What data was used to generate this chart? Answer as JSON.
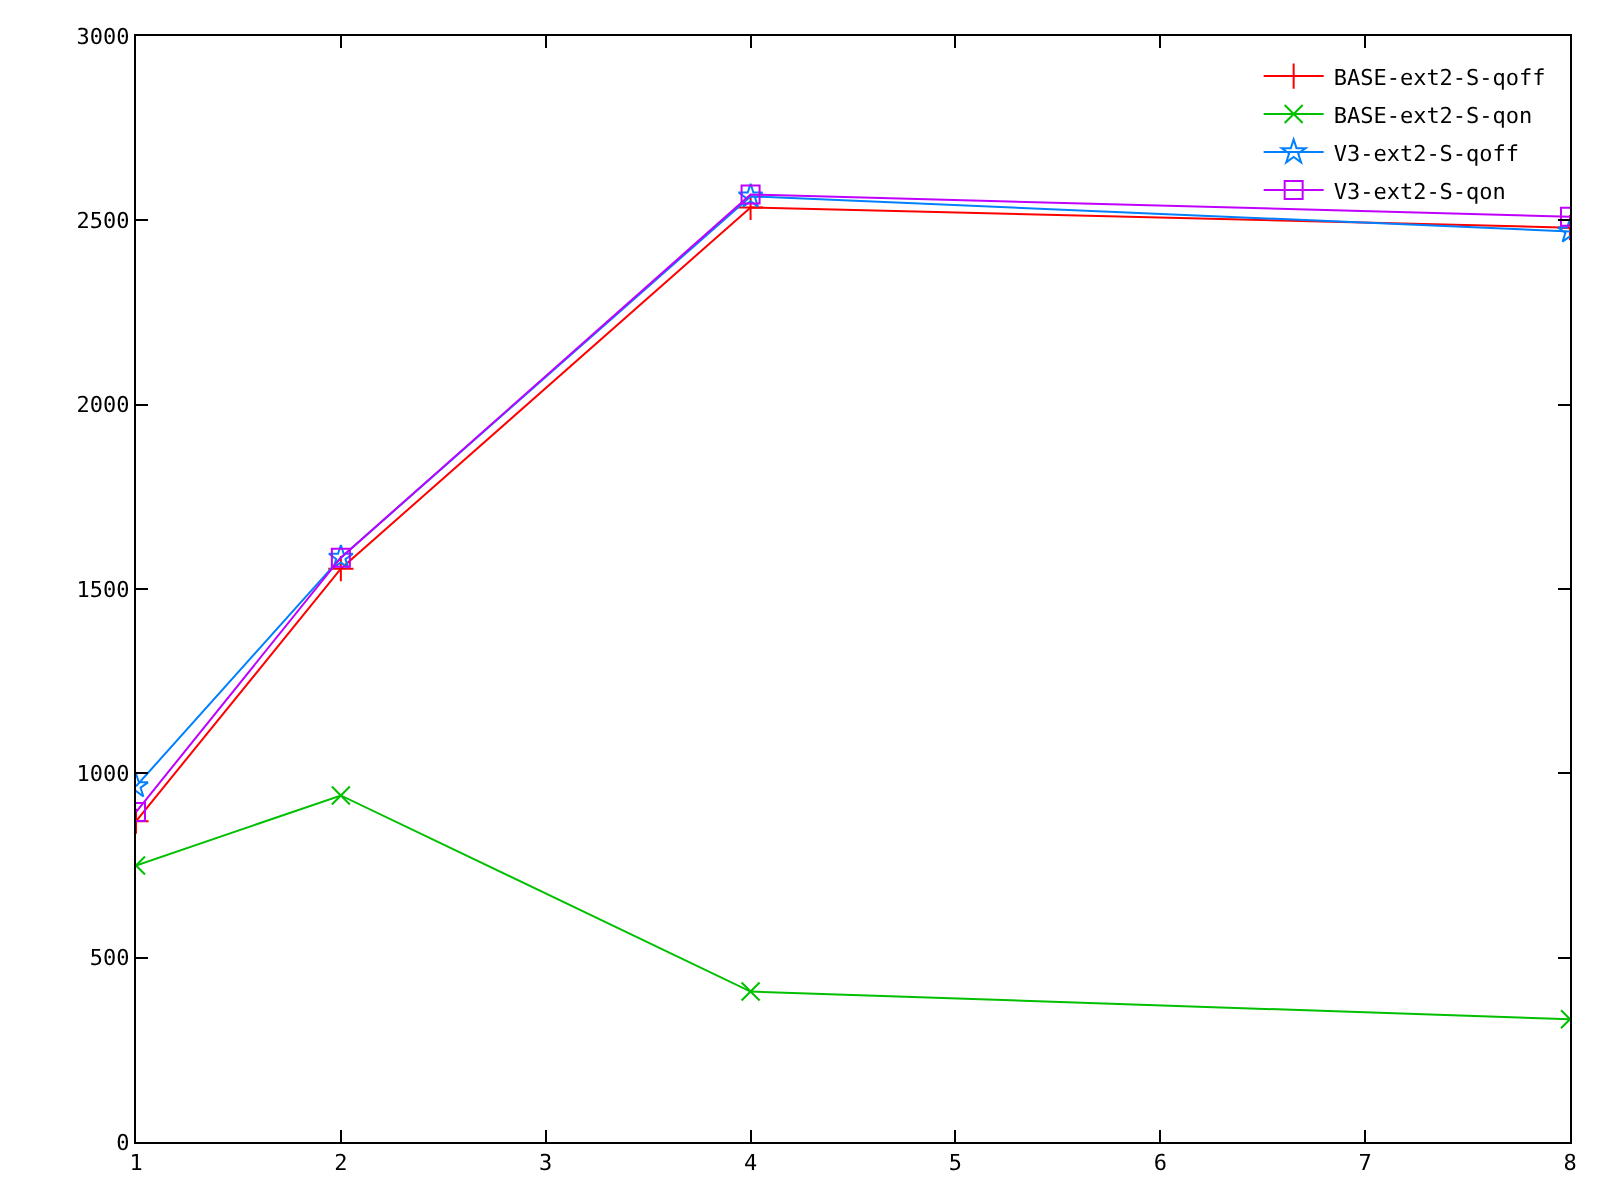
{
  "chart_data": {
    "type": "line",
    "x": [
      1,
      2,
      4,
      8
    ],
    "series": [
      {
        "name": "BASE-ext2-S-qoff",
        "color": "#ff0000",
        "marker": "cross",
        "values": [
          870,
          1555,
          2535,
          2480
        ]
      },
      {
        "name": "BASE-ext2-S-qon",
        "color": "#00c000",
        "marker": "x",
        "values": [
          750,
          940,
          408,
          333
        ]
      },
      {
        "name": "V3-ext2-S-qoff",
        "color": "#0080ff",
        "marker": "star",
        "values": [
          965,
          1585,
          2565,
          2470
        ]
      },
      {
        "name": "V3-ext2-S-qon",
        "color": "#c000ff",
        "marker": "square",
        "values": [
          895,
          1585,
          2570,
          2510
        ]
      }
    ],
    "xlim": [
      1,
      8
    ],
    "xticks": [
      1,
      2,
      3,
      4,
      5,
      6,
      7,
      8
    ],
    "ylim": [
      0,
      3000
    ],
    "yticks": [
      0,
      500,
      1000,
      1500,
      2000,
      2500,
      3000
    ],
    "legend": "top right",
    "line_style": "solid"
  }
}
